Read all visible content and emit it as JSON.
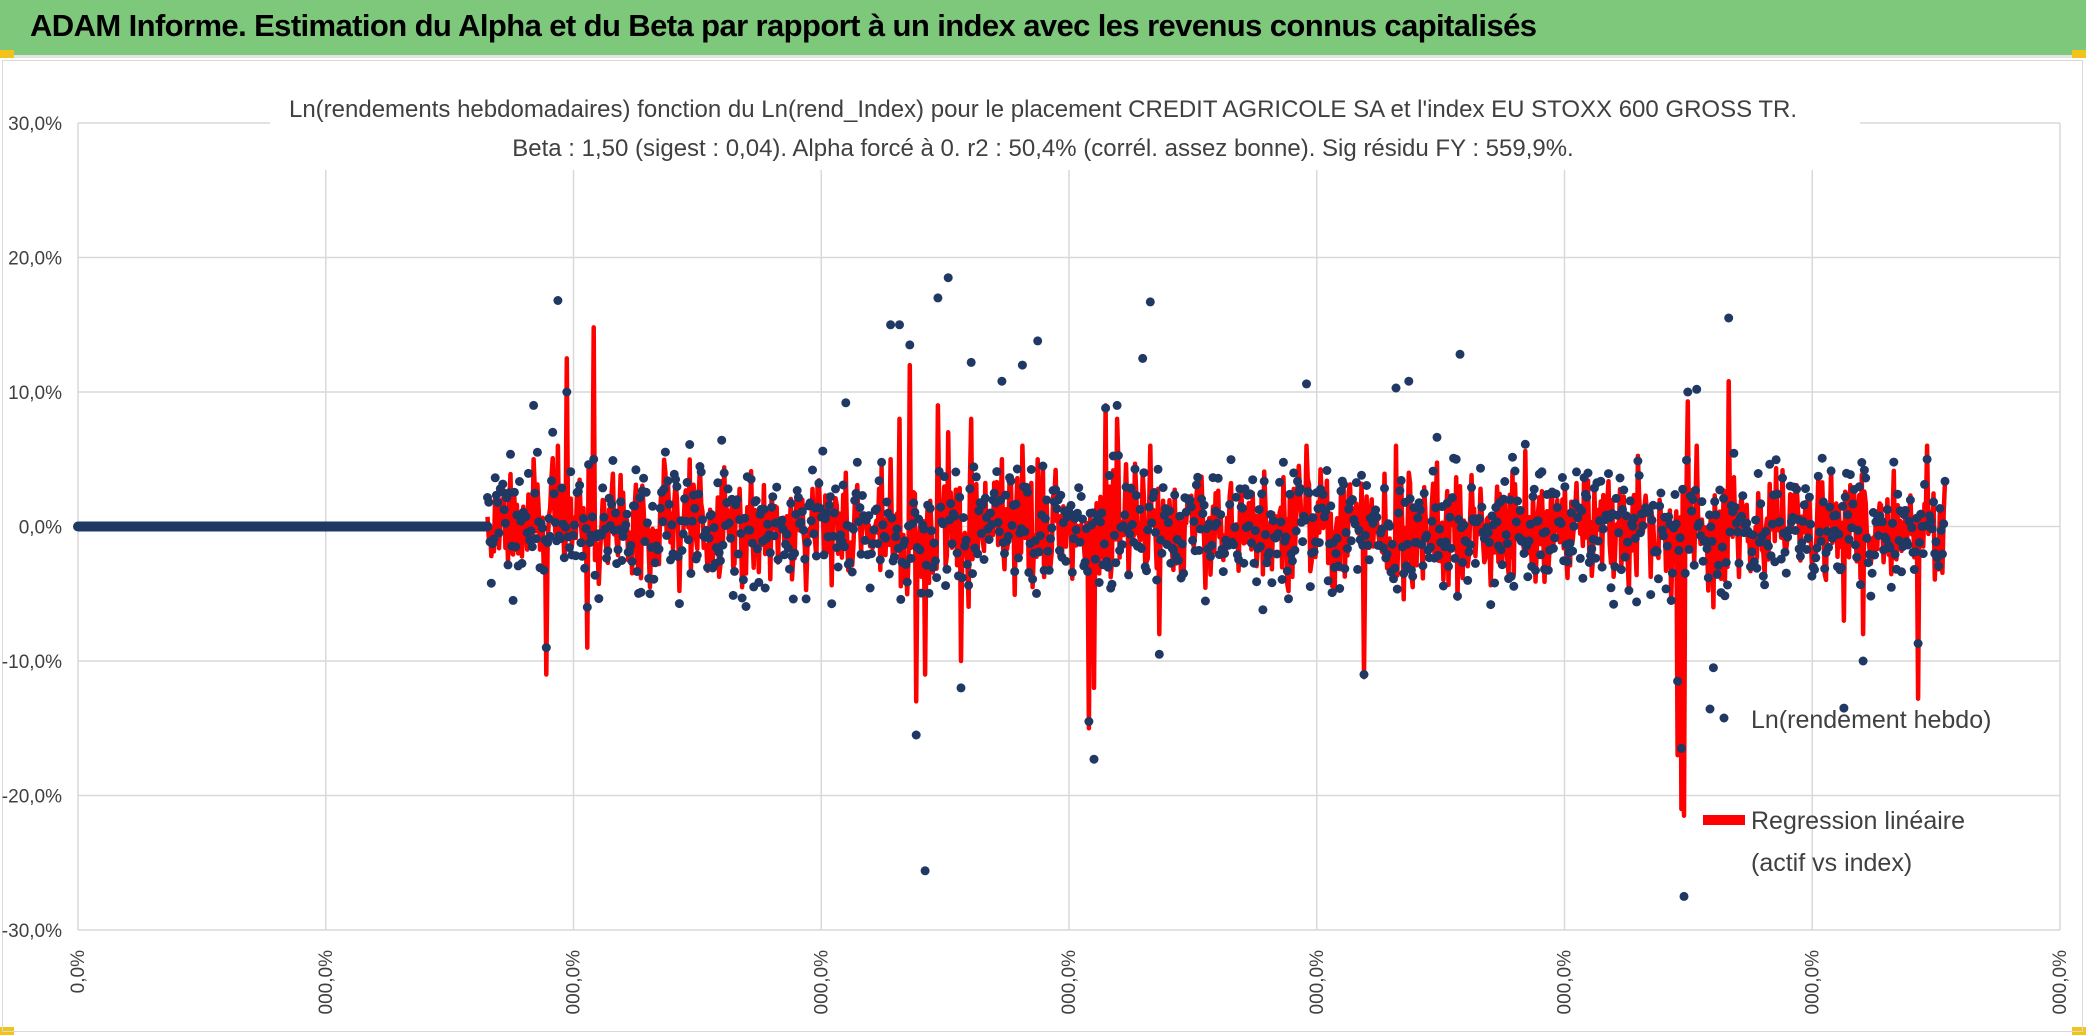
{
  "banner": {
    "title": "ADAM Informe. Estimation du Alpha et du Beta par rapport à un index avec les revenus connus capitalisés",
    "background": "#7ec87c",
    "corner_color": "#f2c318"
  },
  "chart_data": {
    "type": "scatter",
    "title": "Ln(rendements hebdomadaires) fonction du Ln(rend_Index) pour le placement CREDIT AGRICOLE SA et l'index EU STOXX 600 GROSS TR.",
    "subtitle": "Beta : 1,50 (sigest : 0,04). Alpha forcé à 0. r2 : 50,4% (corrél. assez bonne). Sig résidu FY : 559,9%.",
    "xlabel": "",
    "ylabel": "",
    "ylim": [
      -0.3,
      0.3
    ],
    "y_ticks": [
      {
        "value": 0.3,
        "label": "30,0%"
      },
      {
        "value": 0.2,
        "label": "20,0%"
      },
      {
        "value": 0.1,
        "label": "10,0%"
      },
      {
        "value": 0.0,
        "label": "0,0%"
      },
      {
        "value": -0.1,
        "label": "-10,0%"
      },
      {
        "value": -0.2,
        "label": "-20,0%"
      },
      {
        "value": -0.3,
        "label": "-30,0%"
      }
    ],
    "x_tick_labels": [
      "0,0%",
      "000,0%",
      "000,0%",
      "000,0%",
      "000,0%",
      "000,0%",
      "000,0%",
      "000,0%",
      "000,0%"
    ],
    "grid": true,
    "legend_position": "right",
    "n_points": 1460,
    "flat_zero_points": 320,
    "series": [
      {
        "name": "Ln(rendement hebdo)",
        "kind": "points",
        "color": "#203864"
      },
      {
        "name": "Regression linéaire",
        "name_line2": "(actif vs index)",
        "kind": "line",
        "color": "#ff0000"
      }
    ],
    "notable_points": [
      {
        "i": 375,
        "point": 0.168,
        "fit": 0.06
      },
      {
        "i": 382,
        "point": 0.1,
        "fit": 0.125
      },
      {
        "i": 403,
        "point": 0.05,
        "fit": 0.148
      },
      {
        "i": 366,
        "point": -0.09,
        "fit": -0.11
      },
      {
        "i": 398,
        "point": -0.06,
        "fit": -0.09
      },
      {
        "i": 356,
        "point": 0.09,
        "fit": 0.05
      },
      {
        "i": 600,
        "point": 0.092,
        "fit": 0.04
      },
      {
        "i": 635,
        "point": 0.15,
        "fit": 0.05
      },
      {
        "i": 642,
        "point": 0.15,
        "fit": 0.08
      },
      {
        "i": 650,
        "point": 0.135,
        "fit": 0.12
      },
      {
        "i": 655,
        "point": -0.155,
        "fit": -0.13
      },
      {
        "i": 662,
        "point": -0.256,
        "fit": -0.11
      },
      {
        "i": 672,
        "point": 0.17,
        "fit": 0.09
      },
      {
        "i": 680,
        "point": 0.185,
        "fit": 0.07
      },
      {
        "i": 690,
        "point": -0.12,
        "fit": -0.1
      },
      {
        "i": 698,
        "point": 0.122,
        "fit": 0.08
      },
      {
        "i": 722,
        "point": 0.108,
        "fit": 0.05
      },
      {
        "i": 738,
        "point": 0.12,
        "fit": 0.06
      },
      {
        "i": 750,
        "point": 0.138,
        "fit": 0.05
      },
      {
        "i": 790,
        "point": -0.145,
        "fit": -0.15
      },
      {
        "i": 794,
        "point": -0.173,
        "fit": -0.12
      },
      {
        "i": 803,
        "point": 0.088,
        "fit": 0.09
      },
      {
        "i": 812,
        "point": 0.09,
        "fit": 0.08
      },
      {
        "i": 832,
        "point": 0.125,
        "fit": 0.04
      },
      {
        "i": 838,
        "point": 0.167,
        "fit": 0.06
      },
      {
        "i": 845,
        "point": -0.095,
        "fit": -0.08
      },
      {
        "i": 960,
        "point": 0.106,
        "fit": 0.06
      },
      {
        "i": 1005,
        "point": -0.11,
        "fit": -0.112
      },
      {
        "i": 1030,
        "point": 0.103,
        "fit": 0.06
      },
      {
        "i": 1040,
        "point": 0.108,
        "fit": 0.04
      },
      {
        "i": 1080,
        "point": 0.128,
        "fit": 0.03
      },
      {
        "i": 1250,
        "point": -0.115,
        "fit": -0.17
      },
      {
        "i": 1253,
        "point": -0.165,
        "fit": -0.21
      },
      {
        "i": 1255,
        "point": -0.275,
        "fit": -0.215
      },
      {
        "i": 1258,
        "point": 0.1,
        "fit": 0.093
      },
      {
        "i": 1265,
        "point": 0.102,
        "fit": 0.06
      },
      {
        "i": 1278,
        "point": -0.105,
        "fit": -0.06
      },
      {
        "i": 1290,
        "point": 0.155,
        "fit": 0.108
      },
      {
        "i": 1380,
        "point": -0.135,
        "fit": -0.07
      },
      {
        "i": 1395,
        "point": -0.1,
        "fit": -0.08
      },
      {
        "i": 1438,
        "point": -0.087,
        "fit": -0.128
      },
      {
        "i": 1445,
        "point": 0.05,
        "fit": 0.06
      }
    ]
  }
}
